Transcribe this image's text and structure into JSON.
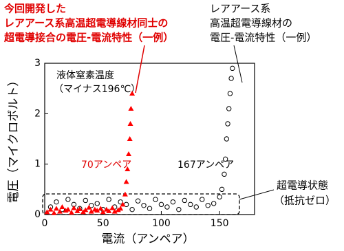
{
  "chart_data": {
    "type": "scatter",
    "xlabel": "電流（アンペア）",
    "ylabel": "電圧（マイクロボルト）",
    "xlim": [
      0,
      180
    ],
    "xticks": [
      0,
      50,
      100,
      150
    ],
    "ylim": [
      0,
      3
    ],
    "yticks": [
      0,
      1,
      2,
      3
    ],
    "annotations": {
      "joint": [
        "今回開発した",
        "レアアース系高温超電導線材同士の",
        "超電導接合の電圧-電流特性（一例）"
      ],
      "wire": [
        "レアアース系",
        "高温超電導線材の",
        "電圧-電流特性（一例）"
      ],
      "temperature": [
        "液体窒素温度",
        "（マイナス196℃）"
      ],
      "joint_current": "70アンペア",
      "wire_current": "167アンペア",
      "state": [
        "超電導状態",
        "（抵抗ゼロ）"
      ]
    },
    "series": [
      {
        "color": "#ffffff",
        "marker": "circle",
        "x": [
          5,
          10,
          15,
          20,
          25,
          30,
          35,
          40,
          45,
          50,
          55,
          60,
          65,
          70,
          75,
          80,
          85,
          90,
          95,
          100,
          105,
          110,
          115,
          120,
          125,
          130,
          135,
          140,
          145,
          150,
          152,
          154,
          155,
          156,
          157,
          158,
          159,
          160,
          161
        ],
        "values": [
          0.15,
          0.25,
          0.1,
          0.3,
          0.2,
          0.12,
          0.28,
          0.18,
          0.22,
          0.1,
          0.3,
          0.15,
          0.25,
          0.2,
          0.1,
          0.27,
          0.18,
          0.12,
          0.3,
          0.2,
          0.15,
          0.25,
          0.1,
          0.28,
          0.2,
          0.15,
          0.3,
          0.18,
          0.22,
          0.35,
          0.5,
          0.8,
          1.1,
          1.5,
          1.8,
          2.1,
          2.4,
          2.7,
          2.9
        ]
      },
      {
        "color": "#ff0000",
        "marker": "triangle",
        "x": [
          2,
          5,
          8,
          10,
          13,
          15,
          18,
          20,
          23,
          25,
          28,
          30,
          33,
          35,
          38,
          40,
          43,
          45,
          48,
          50,
          53,
          55,
          58,
          60,
          63,
          65,
          67,
          69,
          70,
          71,
          72,
          73,
          73.5,
          74,
          75
        ],
        "values": [
          0.05,
          0.1,
          0.03,
          0.12,
          0.06,
          0.15,
          0.08,
          0.1,
          0.04,
          0.13,
          0.07,
          0.11,
          0.05,
          0.09,
          0.14,
          0.06,
          0.1,
          0.08,
          0.12,
          0.05,
          0.1,
          0.07,
          0.13,
          0.06,
          0.09,
          0.12,
          0.2,
          0.4,
          0.65,
          0.9,
          1.2,
          1.5,
          1.8,
          2.1,
          2.4
        ]
      }
    ]
  }
}
